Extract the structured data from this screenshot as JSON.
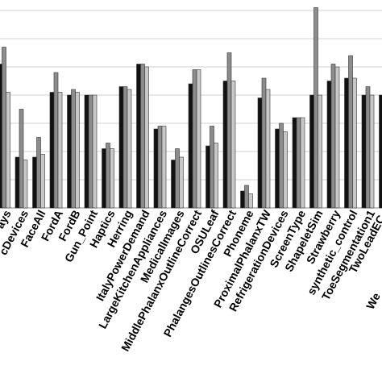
{
  "chart_data": {
    "type": "bar",
    "categories": [
      "ays",
      "cDevices",
      "FaceAll",
      "FordA",
      "FordB",
      "Gun_Point",
      "Haptics",
      "Herring",
      "ItalyPowerDemand",
      "LargeKitchenAppliances",
      "MedicalImages",
      "MiddlePhalanxOutlineCorrect",
      "OSULeaf",
      "PhalangesOutlinesCorrect",
      "Phoneme",
      "ProximalPhalanxTW",
      "RefrigerationDevices",
      "ScreenType",
      "ShapeletSim",
      "Strawberry",
      "synthetic_control",
      "ToeSegmentation1",
      "TwoLeadEC",
      "We"
    ],
    "series": [
      {
        "color": "#111111",
        "values": [
          0.51,
          0.18,
          0.18,
          0.41,
          0.4,
          0.4,
          0.21,
          0.43,
          0.51,
          0.28,
          0.17,
          0.44,
          0.22,
          0.45,
          0.06,
          0.39,
          0.28,
          0.32,
          0.4,
          0.45,
          0.46,
          0.4,
          0.4,
          null
        ]
      },
      {
        "color": "#8c8c8c",
        "values": [
          0.57,
          0.35,
          0.25,
          0.48,
          0.42,
          0.4,
          0.23,
          0.43,
          0.51,
          0.29,
          0.21,
          0.49,
          0.29,
          0.55,
          0.08,
          0.46,
          0.3,
          0.32,
          0.71,
          0.51,
          0.54,
          0.43,
          0.42,
          null
        ]
      },
      {
        "color": "#c8c8c8",
        "values": [
          0.41,
          0.17,
          0.19,
          0.41,
          0.41,
          0.4,
          0.21,
          0.42,
          0.5,
          0.29,
          0.18,
          0.49,
          0.23,
          0.45,
          0.05,
          0.42,
          0.27,
          0.32,
          0.4,
          0.5,
          0.46,
          0.4,
          0.4,
          null
        ]
      }
    ],
    "ylim": [
      0,
      0.74
    ],
    "yticks": [
      0,
      0.1,
      0.2,
      0.3,
      0.4,
      0.5,
      0.6,
      0.7
    ],
    "grid": true
  }
}
